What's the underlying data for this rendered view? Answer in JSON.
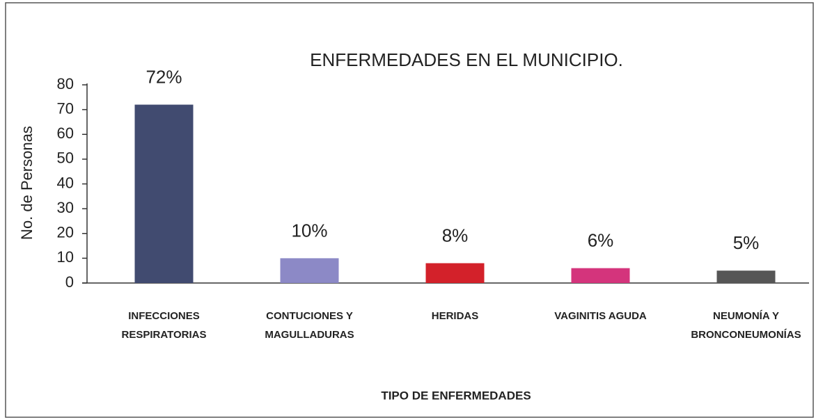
{
  "chart_data": {
    "type": "bar",
    "title": "ENFERMEDADES EN EL MUNICIPIO.",
    "y_label": "No. de Personas",
    "x_label": "TIPO DE ENFERMEDADES",
    "categories": [
      [
        "INFECCIONES",
        "RESPIRATORIAS"
      ],
      [
        "CONTUCIONES Y",
        "MAGULLADURAS"
      ],
      [
        "HERIDAS"
      ],
      [
        "VAGINITIS AGUDA"
      ],
      [
        "NEUMONÍA Y",
        "BRONCONEUMONÍAS"
      ]
    ],
    "values": [
      72,
      10,
      8,
      6,
      5
    ],
    "value_labels": [
      "72%",
      "10%",
      "8%",
      "6%",
      "5%"
    ],
    "colors": [
      "#414b70",
      "#8c89c6",
      "#d3212a",
      "#d4347c",
      "#565656"
    ],
    "ylim": [
      0,
      80
    ],
    "yticks": [
      0,
      10,
      20,
      30,
      40,
      50,
      60,
      70,
      80
    ],
    "grid": false
  }
}
